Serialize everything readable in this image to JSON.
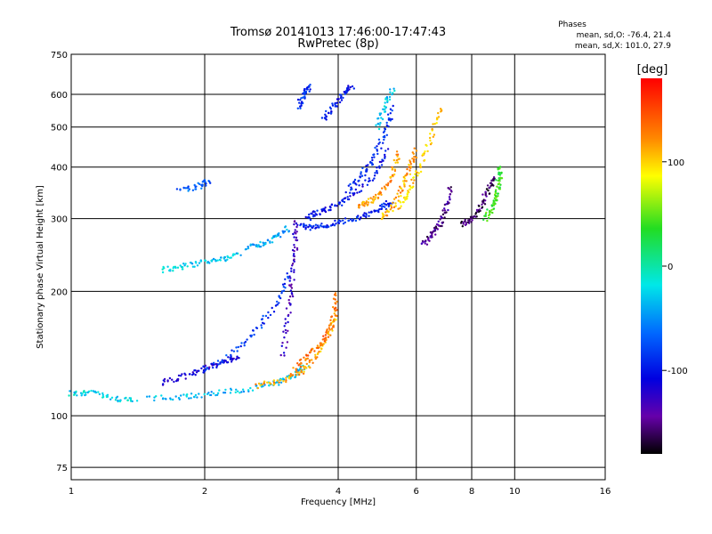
{
  "chart_data": {
    "type": "scatter",
    "title": "Tromsø 20141013 17:46:00-17:47:43",
    "subtitle": "RwPretec (8p)",
    "xlabel": "Frequency [MHz]",
    "ylabel": "Stationary phase Virtual Height [km]",
    "x_scale": "log",
    "y_scale": "log",
    "xlim": [
      1,
      16
    ],
    "ylim": [
      70,
      750
    ],
    "x_ticks": [
      1,
      2,
      4,
      6,
      8,
      10,
      16
    ],
    "y_ticks": [
      75,
      100,
      200,
      300,
      400,
      500,
      600,
      750
    ],
    "x_tick_labels": [
      "1",
      "2",
      "4",
      "6",
      "8",
      "10",
      "16"
    ],
    "y_tick_labels": [
      "75",
      "100",
      "200",
      "300",
      "400",
      "500",
      "600",
      "750"
    ],
    "grid": true,
    "colorbar": {
      "label": "[deg]",
      "range": [
        -180,
        180
      ],
      "ticks": [
        100,
        0,
        -100
      ],
      "tick_labels": [
        "100",
        "0",
        "-100"
      ]
    },
    "phases_box": {
      "heading": "Phases",
      "line_o": "mean, sd,O: -76.4, 21.4",
      "line_x": "mean, sd,X: 101.0, 27.9"
    },
    "traces": [
      {
        "x": [
          1.0,
          1.1,
          1.25,
          1.4
        ],
        "y": [
          113,
          114,
          110,
          109
        ],
        "phase": -25
      },
      {
        "x": [
          1.5,
          1.8,
          2.1,
          2.5,
          2.9,
          3.2,
          3.4
        ],
        "y": [
          110,
          111,
          113,
          116,
          120,
          126,
          132
        ],
        "phase": -35
      },
      {
        "x": [
          2.6,
          3.0,
          3.3,
          3.6,
          3.85,
          3.95
        ],
        "y": [
          118,
          122,
          128,
          140,
          160,
          180
        ],
        "phase": 120
      },
      {
        "x": [
          3.2,
          3.4,
          3.7,
          3.9,
          3.97
        ],
        "y": [
          130,
          140,
          150,
          170,
          200
        ],
        "phase": 140
      },
      {
        "x": [
          1.6,
          1.8,
          2.0,
          2.2,
          2.4
        ],
        "y": [
          120,
          125,
          130,
          135,
          140
        ],
        "phase": -120
      },
      {
        "x": [
          2.0,
          2.3,
          2.6,
          2.9,
          3.1
        ],
        "y": [
          130,
          140,
          160,
          185,
          220
        ],
        "phase": -85
      },
      {
        "x": [
          3.0,
          3.1,
          3.15,
          3.2,
          3.2
        ],
        "y": [
          140,
          180,
          220,
          260,
          300
        ],
        "phase": -130
      },
      {
        "x": [
          3.3,
          3.5,
          3.8,
          4.2,
          4.6,
          5.0,
          5.3
        ],
        "y": [
          288,
          285,
          290,
          298,
          305,
          318,
          330
        ],
        "phase": -95
      },
      {
        "x": [
          3.4,
          3.6,
          3.9,
          4.3,
          4.8,
          5.2
        ],
        "y": [
          300,
          310,
          320,
          340,
          380,
          440
        ],
        "phase": -105
      },
      {
        "x": [
          4.2,
          4.5,
          4.8,
          5.1,
          5.3
        ],
        "y": [
          350,
          380,
          420,
          480,
          560
        ],
        "phase": -90
      },
      {
        "x": [
          4.4,
          4.7,
          5.0,
          5.3,
          5.5
        ],
        "y": [
          320,
          330,
          345,
          380,
          440
        ],
        "phase": 125
      },
      {
        "x": [
          5.0,
          5.3,
          5.6,
          5.8,
          6.0
        ],
        "y": [
          300,
          320,
          360,
          400,
          440
        ],
        "phase": 120
      },
      {
        "x": [
          5.5,
          5.8,
          6.1,
          6.5,
          6.8
        ],
        "y": [
          320,
          350,
          400,
          480,
          560
        ],
        "phase": 110
      },
      {
        "x": [
          6.2,
          6.5,
          6.8,
          7.0,
          7.2
        ],
        "y": [
          260,
          275,
          290,
          320,
          360
        ],
        "phase": -150
      },
      {
        "x": [
          7.6,
          8.0,
          8.4,
          8.7,
          9.0
        ],
        "y": [
          290,
          300,
          320,
          350,
          380
        ],
        "phase": -160
      },
      {
        "x": [
          8.6,
          8.9,
          9.1,
          9.2,
          9.3
        ],
        "y": [
          300,
          320,
          340,
          370,
          400
        ],
        "phase": 40
      },
      {
        "x": [
          1.6,
          1.8,
          2.0,
          2.2,
          2.4
        ],
        "y": [
          225,
          230,
          235,
          240,
          245
        ],
        "phase": -30
      },
      {
        "x": [
          2.5,
          2.7,
          2.9,
          3.1
        ],
        "y": [
          255,
          260,
          270,
          285
        ],
        "phase": -45
      },
      {
        "x": [
          1.75,
          1.95,
          2.05
        ],
        "y": [
          350,
          360,
          370
        ],
        "phase": -70
      },
      {
        "x": [
          3.25,
          3.35,
          3.45
        ],
        "y": [
          560,
          600,
          630
        ],
        "phase": -90
      },
      {
        "x": [
          3.7,
          3.9,
          4.1,
          4.3
        ],
        "y": [
          520,
          560,
          600,
          630
        ],
        "phase": -100
      },
      {
        "x": [
          4.9,
          5.1,
          5.3
        ],
        "y": [
          500,
          560,
          620
        ],
        "phase": -30
      }
    ]
  }
}
